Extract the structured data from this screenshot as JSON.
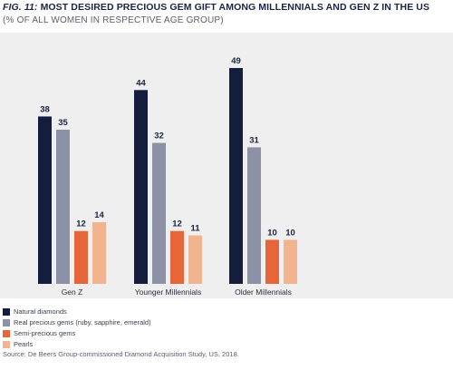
{
  "header": {
    "fig_label": "FIG. 11:",
    "title": "MOST DESIRED PRECIOUS GEM GIFT AMONG MILLENNIALS AND GEN Z IN THE US",
    "subtitle": "(% OF ALL WOMEN IN RESPECTIVE AGE GROUP)"
  },
  "footer": {
    "source": "Source: De Beers Group-commissioned Diamond Acquisition Study, US, 2018."
  },
  "chart_data": {
    "type": "bar",
    "categories": [
      "Gen Z",
      "Younger Millennials",
      "Older Millennials"
    ],
    "series": [
      {
        "name": "Natural diamonds",
        "values": [
          38,
          44,
          49
        ],
        "color": "#141d3c"
      },
      {
        "name": "Real precious gems (ruby, sapphire, emerald)",
        "values": [
          35,
          32,
          31
        ],
        "color": "#8c91a6"
      },
      {
        "name": "Semi-precious gems",
        "values": [
          12,
          12,
          10
        ],
        "color": "#e6663a"
      },
      {
        "name": "Pearls",
        "values": [
          14,
          11,
          10
        ],
        "color": "#f2b48e"
      }
    ],
    "ylim": [
      0,
      55
    ],
    "grid": false,
    "legend_position": "bottom-left",
    "data_labels": true
  }
}
